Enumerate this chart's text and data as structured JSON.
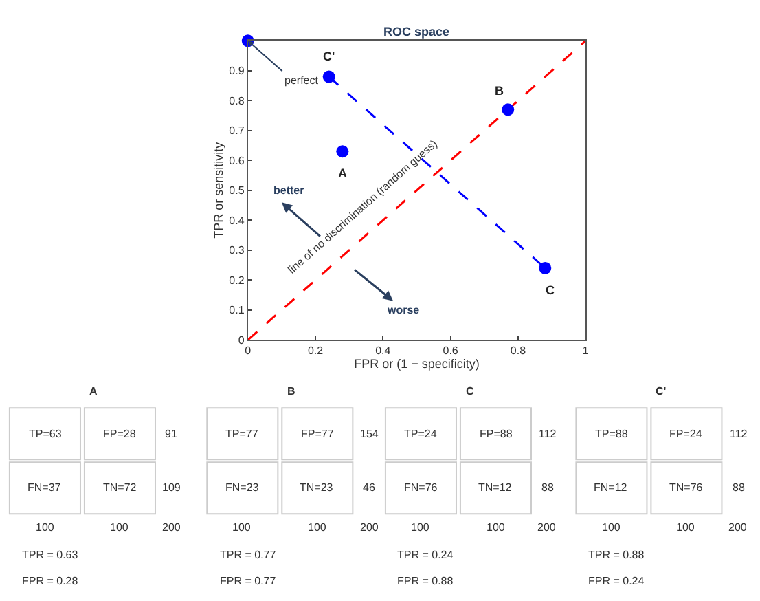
{
  "chart_data": {
    "type": "scatter",
    "title": "ROC space",
    "xlabel": "FPR or (1 − specificity)",
    "ylabel": "TPR or sensitivity",
    "xlim": [
      0,
      1
    ],
    "ylim": [
      0,
      1
    ],
    "xticks": [
      0,
      0.2,
      0.4,
      0.6,
      0.8,
      1
    ],
    "yticks": [
      0,
      0.1,
      0.2,
      0.3,
      0.4,
      0.5,
      0.6,
      0.7,
      0.8,
      0.9
    ],
    "series": [
      {
        "type": "line",
        "color": "#ff0000",
        "line_style": "dashed",
        "marker": "none",
        "x": [
          0,
          1
        ],
        "values": [
          0,
          1
        ]
      },
      {
        "type": "line",
        "color": "#0000ff",
        "line_style": "dashed",
        "marker": "none",
        "x": [
          0.24,
          0.88
        ],
        "values": [
          0.88,
          0.24
        ]
      },
      {
        "color": "#0000ff",
        "marker": "circle",
        "x": [
          0,
          0.28,
          0.77,
          0.88,
          0.24
        ],
        "values": [
          1,
          0.63,
          0.77,
          0.24,
          0.88
        ]
      }
    ],
    "annotations": [
      {
        "text": "perfect",
        "x": 0,
        "y": 1
      },
      {
        "text": "A",
        "x": 0.28,
        "y": 0.63
      },
      {
        "text": "B",
        "x": 0.77,
        "y": 0.77
      },
      {
        "text": "C",
        "x": 0.88,
        "y": 0.24
      },
      {
        "text": "C'",
        "x": 0.24,
        "y": 0.88
      },
      {
        "text": "line of no discrimination (random guess)",
        "x": 0.38,
        "y": 0.38
      },
      "better",
      "worse",
      "A",
      "TP=63",
      "FP=28",
      "91",
      "FN=37",
      "TN=72",
      "109",
      "100",
      "100",
      "200",
      "TPR = 0.63",
      "FPR = 0.28",
      "B",
      "TP=77",
      "FP=77",
      "154",
      "FN=23",
      "TN=23",
      "46",
      "100",
      "100",
      "200",
      "TPR = 0.77",
      "FPR = 0.77",
      "C",
      "TP=24",
      "FP=88",
      "112",
      "FN=76",
      "TN=12",
      "88",
      "100",
      "100",
      "200",
      "TPR = 0.24",
      "FPR = 0.88",
      "C'",
      "TP=88",
      "FP=24",
      "112",
      "FN=12",
      "TN=76",
      "88",
      "100",
      "100",
      "200",
      "TPR = 0.88",
      "FPR = 0.24"
    ]
  }
}
